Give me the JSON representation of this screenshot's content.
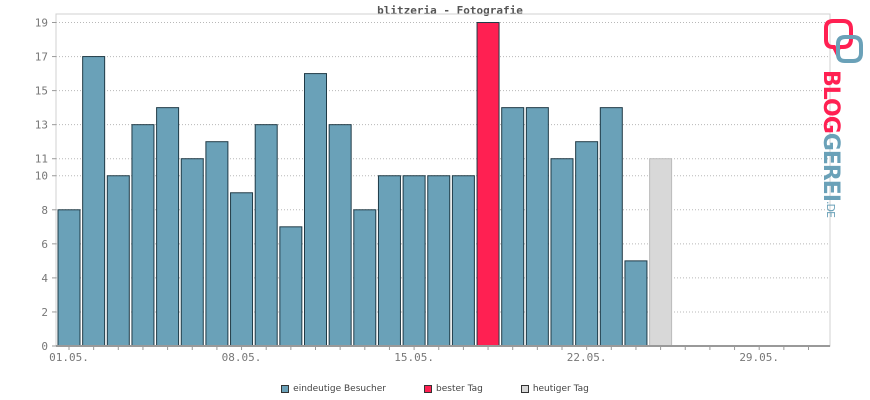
{
  "chart_data": {
    "type": "bar",
    "title": "blitzeria - Fotografie",
    "ylim": [
      0,
      19.5
    ],
    "yticks": [
      0,
      2,
      4,
      6,
      8,
      10,
      11,
      13,
      15,
      17,
      19
    ],
    "x_tick_labels": [
      "01.05.",
      "08.05.",
      "15.05.",
      "22.05.",
      "29.05."
    ],
    "x_tick_label_days": [
      1,
      8,
      15,
      22,
      29
    ],
    "days": [
      1,
      2,
      3,
      4,
      5,
      6,
      7,
      8,
      9,
      10,
      11,
      12,
      13,
      14,
      15,
      16,
      17,
      18,
      19,
      20,
      21,
      22,
      23,
      24
    ],
    "values": [
      8,
      17,
      10,
      13,
      14,
      11,
      12,
      9,
      13,
      7,
      16,
      13,
      8,
      10,
      10,
      10,
      10,
      19,
      14,
      14,
      11,
      12,
      14,
      5
    ],
    "highlight_best_day": 18,
    "today": {
      "day": 25,
      "value": 11
    },
    "colors": {
      "visitors": "#6aa1b8",
      "best": "#ff2052",
      "today": "#d8d8d8"
    },
    "grid": true,
    "legend_position": "bottom-center"
  },
  "legend": {
    "visitors": "eindeutige Besucher",
    "best": "bester Tag",
    "today": "heutiger Tag"
  },
  "logo": {
    "name": "BLOGGEREI",
    "tld": ".DE"
  }
}
